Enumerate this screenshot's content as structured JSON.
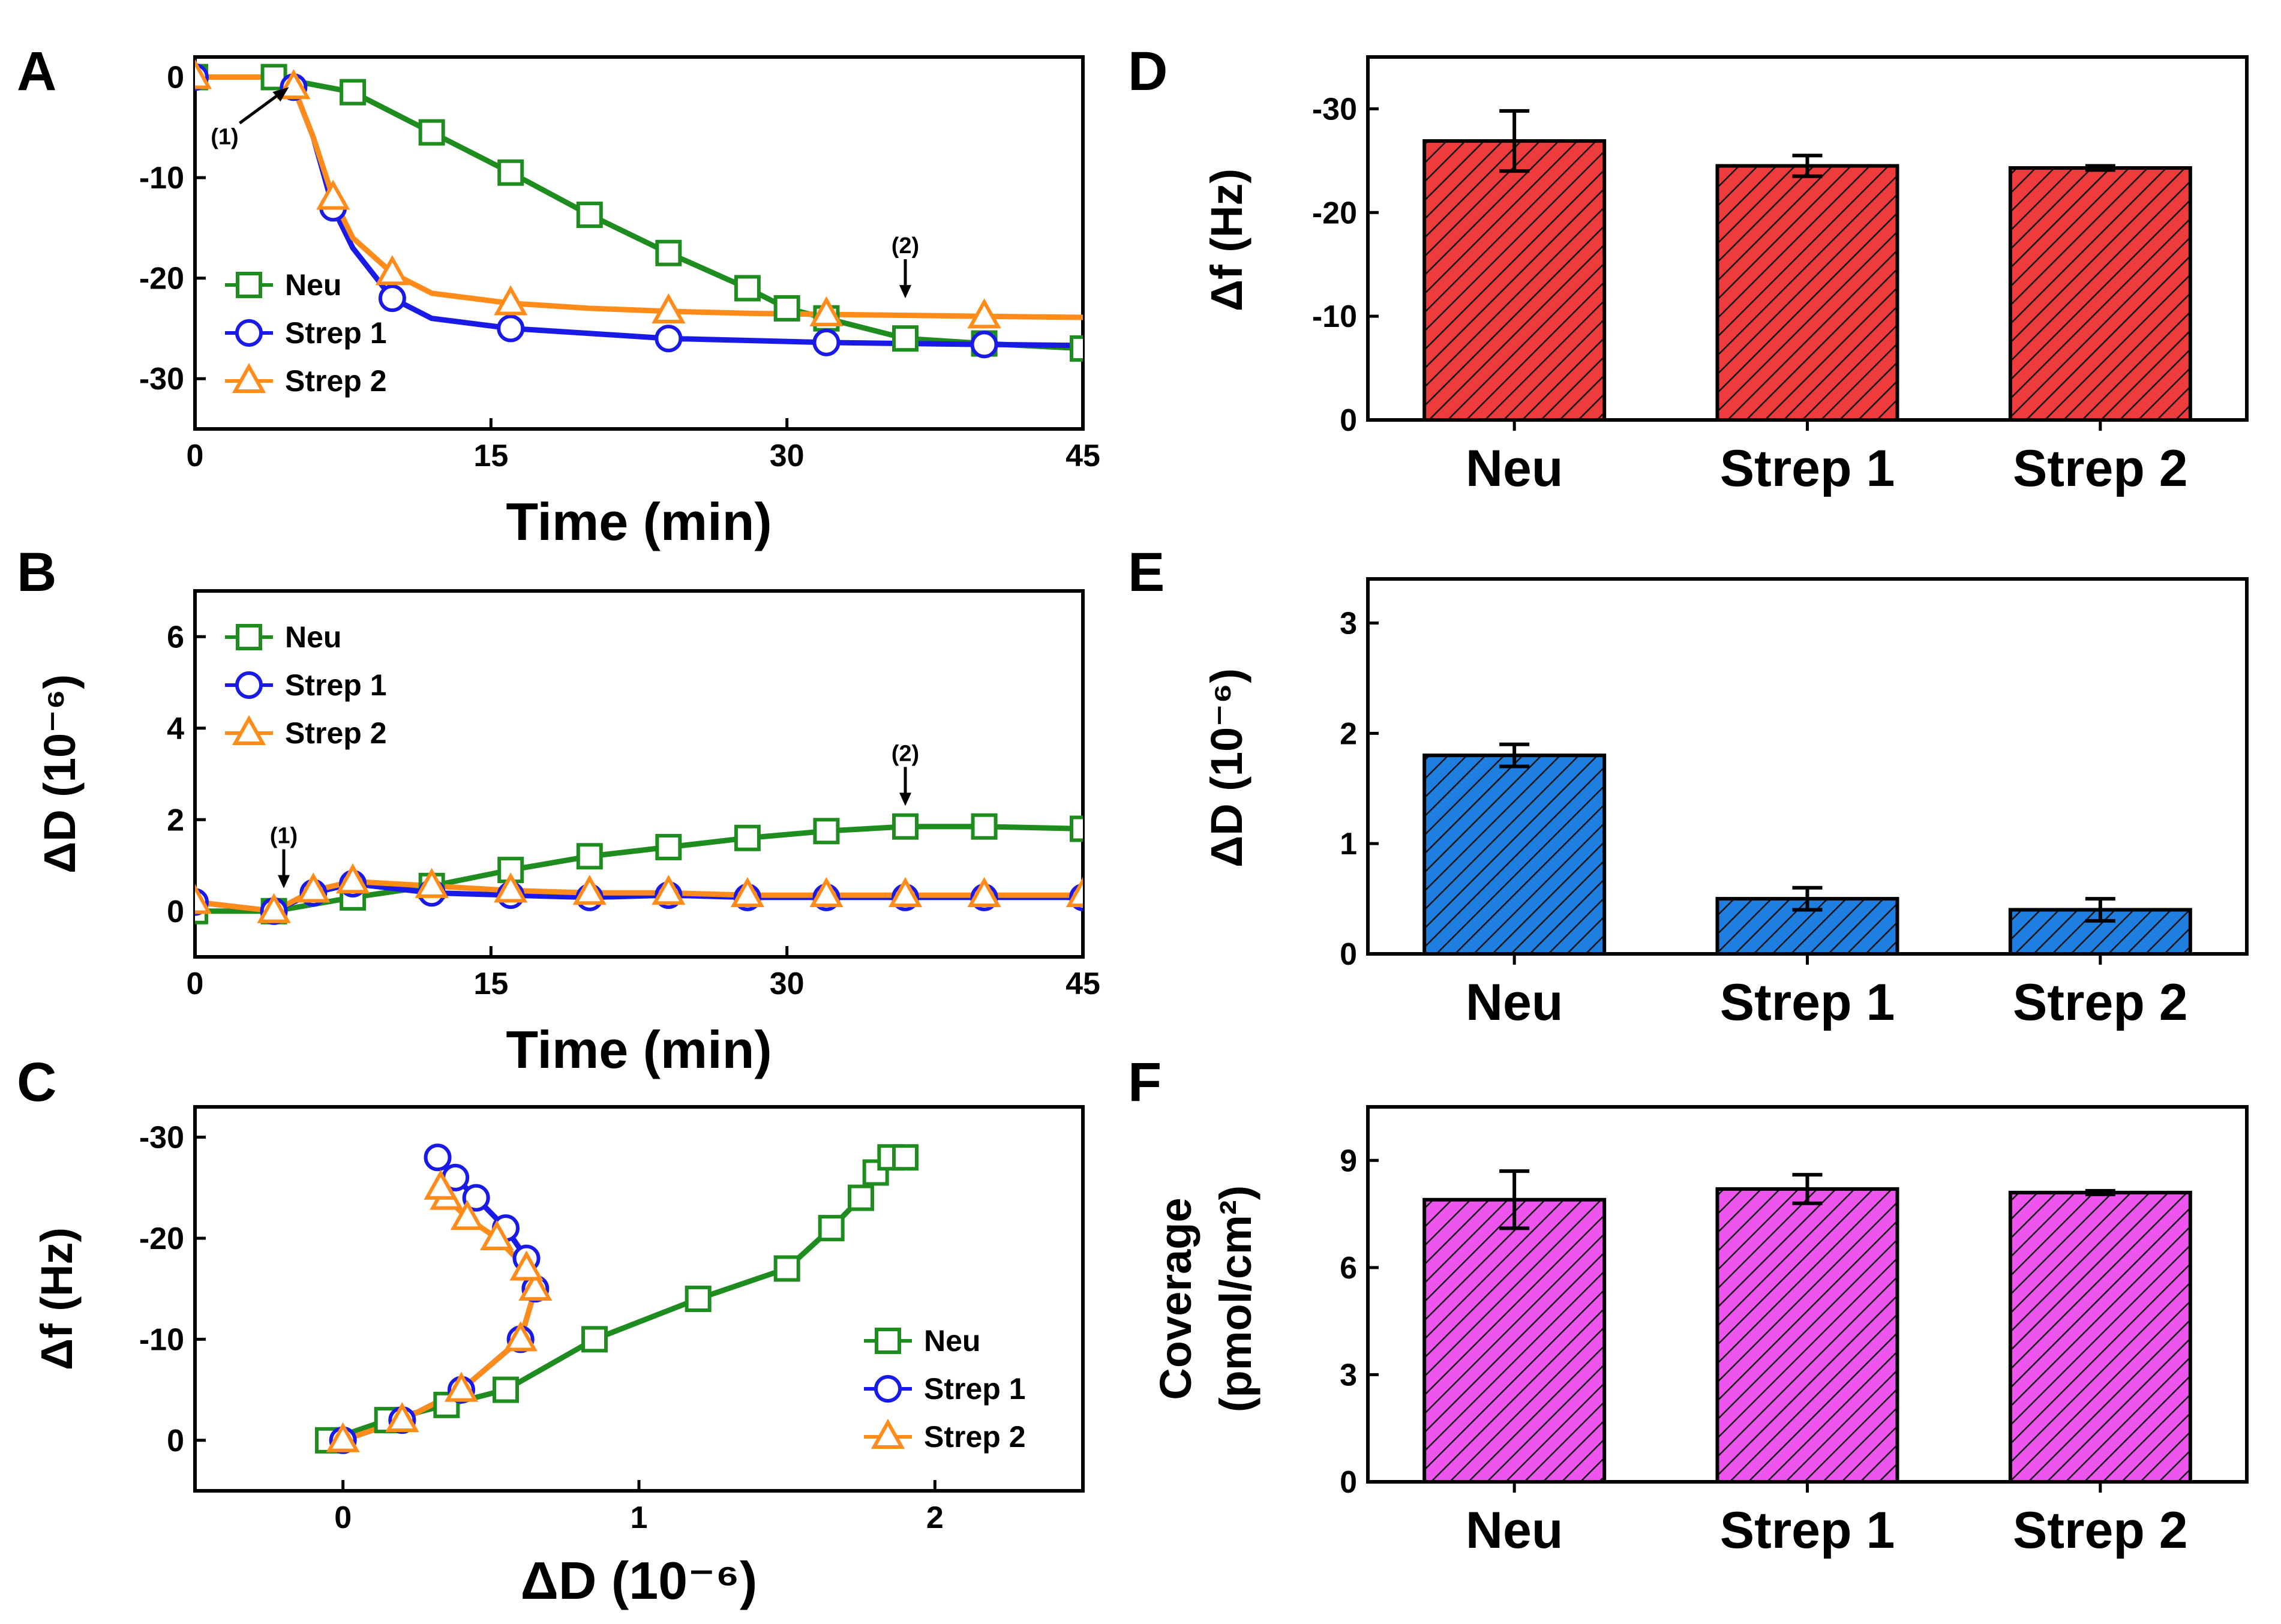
{
  "colors": {
    "neu": "#1e8c1e",
    "strep1": "#1a1ae6",
    "strep2": "#ff8c1a",
    "bar_D": "#ee3b3b",
    "bar_E": "#1f7fe0",
    "bar_F": "#ee55ee"
  },
  "panel_labels": {
    "A": "A",
    "B": "B",
    "C": "C",
    "D": "D",
    "E": "E",
    "F": "F"
  },
  "annotations": {
    "a1": "(1)",
    "a2": "(2)"
  },
  "chart_data": [
    {
      "id": "A",
      "type": "line",
      "xlabel": "Time (min)",
      "ylabel": "",
      "xlim": [
        0,
        45
      ],
      "ylim": [
        -35,
        2
      ],
      "xticks": [
        0,
        15,
        30,
        45
      ],
      "yticks": [
        0,
        -10,
        -20,
        -30
      ],
      "legend": {
        "position": "bottom-left",
        "entries": [
          "Neu",
          "Strep 1",
          "Strep 2"
        ]
      },
      "annotations": [
        {
          "label": "(1)",
          "x": 5,
          "y": -1
        },
        {
          "label": "(2)",
          "x": 36,
          "y": -22
        }
      ],
      "series": [
        {
          "name": "Neu",
          "marker": "square",
          "x": [
            0,
            4,
            8,
            12,
            16,
            20,
            24,
            28,
            30,
            32,
            36,
            40,
            45
          ],
          "y": [
            0,
            0,
            -1.5,
            -5.5,
            -9.5,
            -13.7,
            -17.5,
            -21,
            -23,
            -24,
            -26,
            -26.5,
            -27
          ]
        },
        {
          "name": "Strep 1",
          "marker": "circle",
          "x": [
            0,
            4,
            5,
            6,
            7,
            8,
            10,
            12,
            16,
            20,
            24,
            28,
            32,
            36,
            40,
            45
          ],
          "y": [
            0,
            0,
            -1,
            -6,
            -13,
            -17,
            -22,
            -24,
            -25,
            -25.5,
            -26,
            -26.2,
            -26.4,
            -26.5,
            -26.6,
            -26.7
          ]
        },
        {
          "name": "Strep 2",
          "marker": "triangle",
          "x": [
            0,
            4,
            5,
            6,
            7,
            8,
            10,
            12,
            16,
            20,
            24,
            28,
            32,
            36,
            40,
            45
          ],
          "y": [
            0,
            0,
            -1,
            -6,
            -12,
            -16,
            -19.5,
            -21.5,
            -22.5,
            -23,
            -23.3,
            -23.5,
            -23.6,
            -23.7,
            -23.8,
            -23.9
          ]
        }
      ]
    },
    {
      "id": "B",
      "type": "line",
      "xlabel": "Time (min)",
      "ylabel": "ΔD (10⁻⁶)",
      "xlim": [
        0,
        45
      ],
      "ylim": [
        -1,
        7
      ],
      "xticks": [
        0,
        15,
        30,
        45
      ],
      "yticks": [
        0,
        2,
        4,
        6
      ],
      "legend": {
        "position": "top-left",
        "entries": [
          "Neu",
          "Strep 1",
          "Strep 2"
        ]
      },
      "annotations": [
        {
          "label": "(1)",
          "x": 4.5,
          "y": 0.5
        },
        {
          "label": "(2)",
          "x": 36,
          "y": 2.3
        }
      ],
      "series": [
        {
          "name": "Neu",
          "marker": "square",
          "x": [
            0,
            4,
            8,
            12,
            16,
            20,
            24,
            28,
            32,
            36,
            40,
            45
          ],
          "y": [
            0,
            0,
            0.3,
            0.55,
            0.9,
            1.2,
            1.4,
            1.6,
            1.75,
            1.85,
            1.85,
            1.8
          ]
        },
        {
          "name": "Strep 1",
          "marker": "circle",
          "x": [
            0,
            4,
            6,
            8,
            12,
            16,
            20,
            24,
            28,
            32,
            36,
            40,
            45
          ],
          "y": [
            0.2,
            0,
            0.4,
            0.6,
            0.4,
            0.35,
            0.3,
            0.35,
            0.3,
            0.3,
            0.3,
            0.3,
            0.3
          ]
        },
        {
          "name": "Strep 2",
          "marker": "triangle",
          "x": [
            0,
            4,
            6,
            8,
            12,
            16,
            20,
            24,
            28,
            32,
            36,
            40,
            45
          ],
          "y": [
            0.2,
            0,
            0.45,
            0.65,
            0.55,
            0.45,
            0.4,
            0.4,
            0.35,
            0.35,
            0.35,
            0.35,
            0.35
          ]
        }
      ]
    },
    {
      "id": "C",
      "type": "scatter",
      "xlabel": "ΔD (10⁻⁶)",
      "ylabel": "Δf (Hz)",
      "xlim": [
        -0.5,
        2.5
      ],
      "ylim": [
        5,
        -33
      ],
      "xticks": [
        0,
        1,
        2
      ],
      "yticks": [
        0,
        -10,
        -20,
        -30
      ],
      "legend": {
        "position": "bottom-right",
        "entries": [
          "Neu",
          "Strep 1",
          "Strep 2"
        ]
      },
      "series": [
        {
          "name": "Neu",
          "marker": "square",
          "x": [
            -0.05,
            0.15,
            0.35,
            0.55,
            0.85,
            1.2,
            1.5,
            1.65,
            1.75,
            1.8,
            1.85,
            1.9
          ],
          "y": [
            0,
            -2,
            -3.5,
            -5,
            -10,
            -14,
            -17,
            -21,
            -24,
            -26.5,
            -28,
            -28
          ]
        },
        {
          "name": "Strep 1",
          "marker": "circle",
          "x": [
            0,
            0.2,
            0.4,
            0.6,
            0.65,
            0.62,
            0.55,
            0.45,
            0.38,
            0.32
          ],
          "y": [
            0,
            -2,
            -5,
            -10,
            -15,
            -18,
            -21,
            -24,
            -26,
            -28
          ]
        },
        {
          "name": "Strep 2",
          "marker": "triangle",
          "x": [
            0,
            0.2,
            0.4,
            0.6,
            0.65,
            0.62,
            0.52,
            0.42,
            0.35,
            0.33
          ],
          "y": [
            0,
            -2,
            -5,
            -10,
            -15,
            -17,
            -20,
            -22,
            -24,
            -25
          ]
        }
      ]
    },
    {
      "id": "D",
      "type": "bar",
      "ylabel": "Δf (Hz)",
      "categories": [
        "Neu",
        "Strep 1",
        "Strep 2"
      ],
      "values": [
        -26.9,
        -24.5,
        -24.3
      ],
      "errors": [
        2.9,
        1.0,
        0.2
      ],
      "ylim": [
        0,
        -35
      ],
      "yticks": [
        0,
        -10,
        -20,
        -30
      ]
    },
    {
      "id": "E",
      "type": "bar",
      "ylabel": "ΔD (10⁻⁶)",
      "categories": [
        "Neu",
        "Strep 1",
        "Strep 2"
      ],
      "values": [
        1.8,
        0.5,
        0.4
      ],
      "errors": [
        0.1,
        0.1,
        0.1
      ],
      "ylim": [
        0,
        3.4
      ],
      "yticks": [
        0,
        1,
        2,
        3
      ]
    },
    {
      "id": "F",
      "type": "bar",
      "ylabel": "Coverage",
      "ylabel2": "(pmol/cm²)",
      "categories": [
        "Neu",
        "Strep 1",
        "Strep 2"
      ],
      "values": [
        7.9,
        8.2,
        8.1
      ],
      "errors": [
        0.8,
        0.4,
        0.05
      ],
      "ylim": [
        0,
        10.5
      ],
      "yticks": [
        0,
        3,
        6,
        9
      ]
    }
  ]
}
